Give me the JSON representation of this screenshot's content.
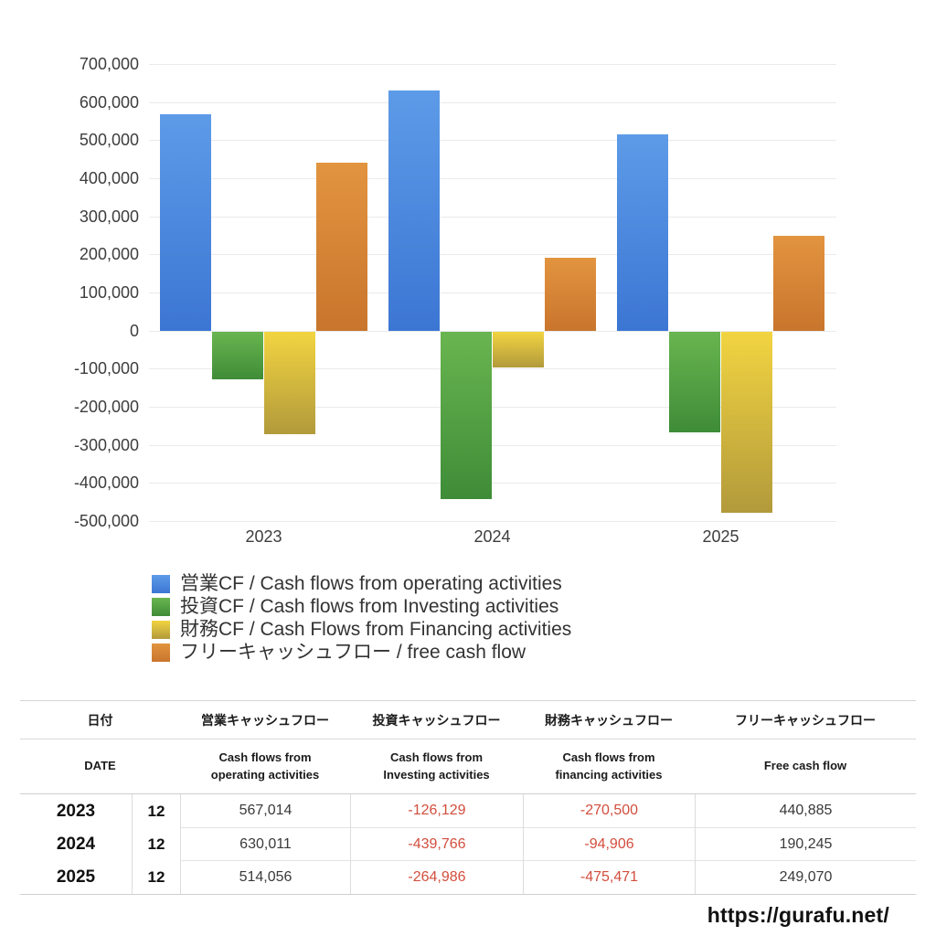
{
  "chart_data": {
    "type": "bar",
    "categories": [
      "2023",
      "2024",
      "2025"
    ],
    "series": [
      {
        "name": "営業CF / Cash flows from operating activities",
        "key": "operating",
        "values": [
          567014,
          630011,
          514056
        ],
        "color_top": "#5d9be8",
        "color_bottom": "#3c76d3"
      },
      {
        "name": "投資CF / Cash flows from Investing activities",
        "key": "investing",
        "values": [
          -126129,
          -439766,
          -264986
        ],
        "color_top": "#69b550",
        "color_bottom": "#3f8c38"
      },
      {
        "name": "財務CF / Cash Flows from Financing activities",
        "key": "financing",
        "values": [
          -270500,
          -94906,
          -475471
        ],
        "color_top": "#f2d441",
        "color_bottom": "#b29a3b"
      },
      {
        "name": "フリーキャッシュフロー / free cash flow",
        "key": "free-cash-flow",
        "values": [
          440885,
          190245,
          249070
        ],
        "color_top": "#e2943f",
        "color_bottom": "#c9752d"
      }
    ],
    "title": "",
    "xlabel": "",
    "ylabel": "",
    "ylim": [
      -500000,
      700000
    ],
    "ytick_step": 100000,
    "y_tick_labels": [
      "700,000",
      "600,000",
      "500,000",
      "400,000",
      "300,000",
      "200,000",
      "100,000",
      "0",
      "-100,000",
      "-200,000",
      "-300,000",
      "-400,000",
      "-500,000"
    ],
    "grid": true,
    "legend_position": "bottom-left",
    "gridline_color": "#eaeaea"
  },
  "table": {
    "header_jp": {
      "date": "日付",
      "operating": "営業キャッシュフロー",
      "investing": "投資キャッシュフロー",
      "financing": "財務キャッシュフロー",
      "fcf": "フリーキャッシュフロー"
    },
    "header_en": {
      "date": "DATE",
      "operating": "Cash flows from operating activities",
      "investing": "Cash flows from Investing activities",
      "financing": "Cash flows from financing activities",
      "fcf": "Free cash flow"
    },
    "rows": [
      {
        "year": "2023",
        "month": "12",
        "values": [
          "567,014",
          "-126,129",
          "-270,500",
          "440,885"
        ]
      },
      {
        "year": "2024",
        "month": "12",
        "values": [
          "630,011",
          "-439,766",
          "-94,906",
          "190,245"
        ]
      },
      {
        "year": "2025",
        "month": "12",
        "values": [
          "514,056",
          "-264,986",
          "-475,471",
          "249,070"
        ]
      }
    ],
    "negative_color": "#d24e3d",
    "positive_color": "#3a3a3a"
  },
  "footer": {
    "url": "https://gurafu.net/"
  }
}
